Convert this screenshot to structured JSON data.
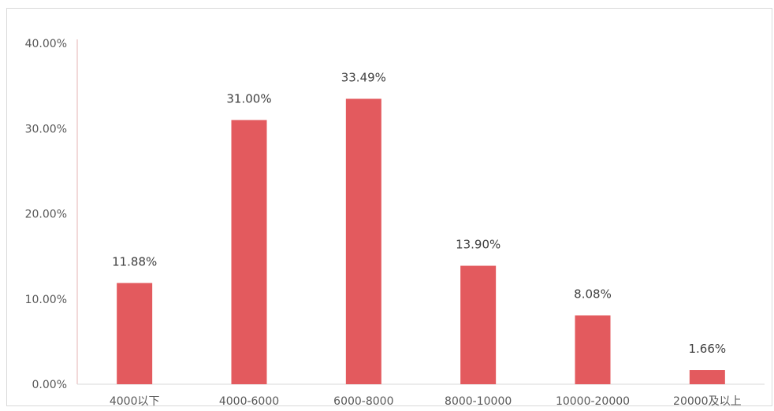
{
  "chart_data": {
    "type": "bar",
    "categories": [
      "4000以下",
      "4000-6000",
      "6000-8000",
      "8000-10000",
      "10000-20000",
      "20000及以上"
    ],
    "values": [
      11.88,
      31.0,
      33.49,
      13.9,
      8.08,
      1.66
    ],
    "value_labels": [
      "11.88%",
      "31.00%",
      "33.49%",
      "13.90%",
      "8.08%",
      "1.66%"
    ],
    "y_ticks": [
      "0.00%",
      "10.00%",
      "20.00%",
      "30.00%",
      "40.00%"
    ],
    "ylim": [
      0,
      40
    ],
    "grid": false,
    "legend": "none",
    "bar_color": "#e35a5e"
  }
}
